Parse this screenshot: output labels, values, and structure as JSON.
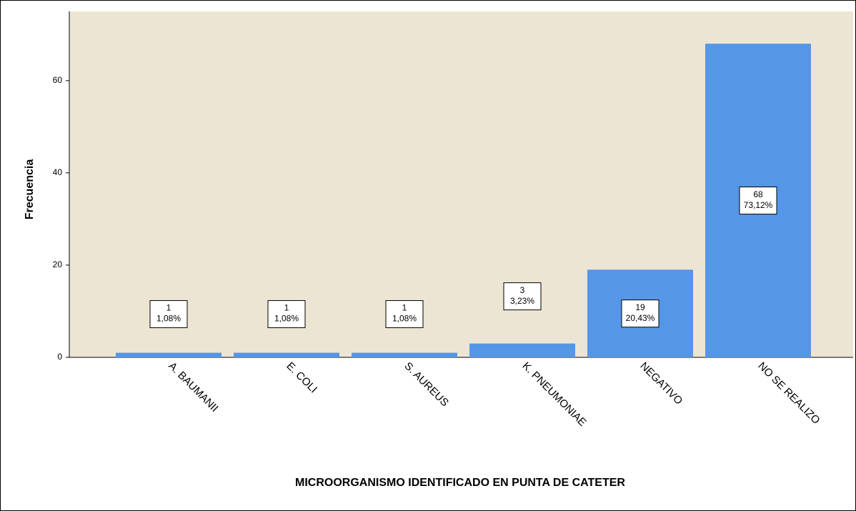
{
  "chart_data": {
    "type": "bar",
    "x_label": "MICROORGANISMO IDENTIFICADO EN PUNTA DE CATETER",
    "y_label": "Frecuencia",
    "categories": [
      "A. BAUMANII",
      "E. COLI",
      "S. AUREUS",
      "K. PNEUMONIAE",
      "NEGATIVO",
      "NO SE REALIZO"
    ],
    "values": [
      1,
      1,
      1,
      3,
      19,
      68
    ],
    "percent_values": [
      1.08,
      1.08,
      1.08,
      3.23,
      20.43,
      73.12
    ],
    "percent_labels": [
      "1,08%",
      "1,08%",
      "1,08%",
      "3,23%",
      "20,43%",
      "73,12%"
    ],
    "color": "#5596e6",
    "background": "#ede5d3",
    "ylim": [
      0,
      75
    ],
    "yticks": [
      0,
      20,
      40,
      60
    ],
    "grid": false
  }
}
